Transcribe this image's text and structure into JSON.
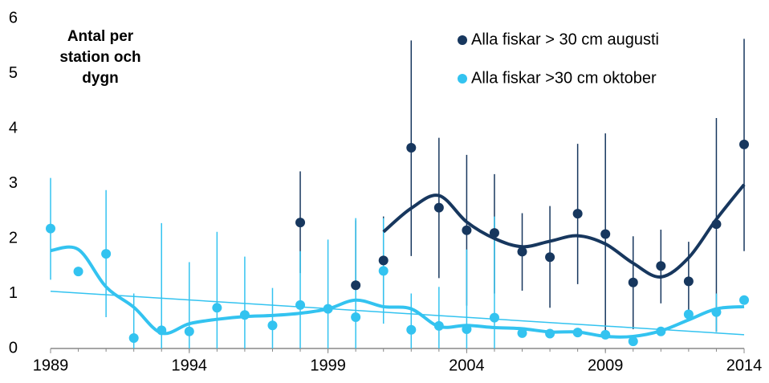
{
  "chart_data": {
    "type": "line",
    "annotation": [
      "Antal per",
      "station och",
      "dygn"
    ],
    "x": [
      1989,
      1990,
      1991,
      1992,
      1993,
      1994,
      1995,
      1996,
      1997,
      1998,
      1999,
      2000,
      2001,
      2002,
      2003,
      2004,
      2005,
      2006,
      2007,
      2008,
      2009,
      2010,
      2011,
      2012,
      2013,
      2014
    ],
    "series": [
      {
        "name": "Alla fiskar > 30 cm augusti",
        "color": "#17375e",
        "values": [
          null,
          null,
          null,
          null,
          null,
          null,
          null,
          null,
          null,
          2.29,
          null,
          1.15,
          1.6,
          3.65,
          2.56,
          2.15,
          2.1,
          1.76,
          1.66,
          2.45,
          2.08,
          1.2,
          1.5,
          1.22,
          2.26,
          3.71
        ],
        "lower": [
          null,
          null,
          null,
          null,
          null,
          null,
          null,
          null,
          null,
          1.37,
          null,
          1.15,
          0.8,
          1.68,
          1.28,
          0.78,
          1.0,
          1.05,
          0.74,
          1.17,
          0.25,
          0.35,
          0.82,
          0.5,
          0.3,
          1.77
        ],
        "upper": [
          null,
          null,
          null,
          null,
          null,
          null,
          null,
          null,
          null,
          3.22,
          null,
          2.33,
          2.4,
          5.6,
          3.83,
          3.52,
          3.17,
          2.46,
          2.59,
          3.72,
          3.91,
          2.04,
          2.16,
          1.94,
          4.19,
          5.63
        ],
        "smooth": [
          null,
          null,
          null,
          null,
          null,
          null,
          null,
          null,
          null,
          null,
          null,
          null,
          2.12,
          2.55,
          2.78,
          2.3,
          2.0,
          1.85,
          1.95,
          2.05,
          1.9,
          1.55,
          1.3,
          1.65,
          2.35,
          2.98
        ]
      },
      {
        "name": "Alla fiskar >30 cm oktober",
        "color": "#33c3f0",
        "values": [
          2.18,
          1.4,
          1.72,
          0.19,
          0.33,
          0.31,
          0.74,
          0.61,
          0.42,
          0.79,
          0.72,
          0.57,
          1.41,
          0.34,
          0.41,
          0.35,
          0.56,
          0.28,
          0.27,
          0.29,
          0.25,
          0.13,
          0.31,
          0.62,
          0.66,
          0.88
        ],
        "lower": [
          1.25,
          null,
          0.57,
          0,
          0,
          0,
          0,
          0,
          0,
          0,
          0,
          0,
          0.45,
          0,
          0,
          0,
          0,
          null,
          null,
          null,
          null,
          null,
          null,
          null,
          0.3,
          null
        ],
        "upper": [
          3.1,
          null,
          2.88,
          1.0,
          2.28,
          1.57,
          2.12,
          1.67,
          1.1,
          1.77,
          1.98,
          2.37,
          2.37,
          1.0,
          1.12,
          1.8,
          2.4,
          null,
          null,
          null,
          null,
          null,
          null,
          null,
          1.0,
          null
        ],
        "smooth": [
          1.78,
          1.8,
          1.12,
          0.75,
          0.28,
          0.45,
          0.53,
          0.58,
          0.6,
          0.64,
          0.72,
          0.88,
          0.76,
          0.72,
          0.4,
          0.42,
          0.38,
          0.36,
          0.3,
          0.3,
          0.22,
          0.22,
          0.32,
          0.52,
          0.72,
          0.76
        ],
        "trend_x": [
          1989,
          2014
        ],
        "trend": [
          1.04,
          0.25
        ]
      }
    ],
    "xlim": [
      1989,
      2014
    ],
    "xticks": [
      1989,
      1994,
      1999,
      2004,
      2009,
      2014
    ],
    "ylim": [
      0,
      6
    ],
    "yticks": [
      0,
      1,
      2,
      3,
      4,
      5,
      6
    ],
    "grid": false
  }
}
